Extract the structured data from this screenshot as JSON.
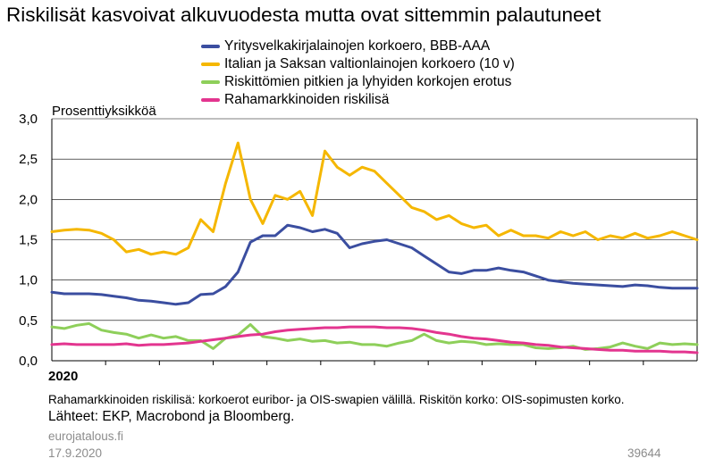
{
  "title": "Riskilisät kasvoivat alkuvuodesta mutta ovat sittemmin palautuneet",
  "chart_data": {
    "type": "line",
    "ylabel": "Prosenttiyksikköä",
    "ylim": [
      0,
      3
    ],
    "yticks": [
      "0,0",
      "0,5",
      "1,0",
      "1,5",
      "2,0",
      "2,5",
      "3,0"
    ],
    "xlim": [
      0,
      52
    ],
    "x_label": "2020",
    "grid": true,
    "legend_position": "top",
    "series": [
      {
        "name": "Yritysvelkakirjalainojen korkoero, BBB-AAA",
        "color": "#3b4ea0",
        "x": [
          0,
          1,
          2,
          3,
          4,
          5,
          6,
          7,
          8,
          9,
          10,
          11,
          12,
          13,
          14,
          15,
          16,
          17,
          18,
          19,
          20,
          21,
          22,
          23,
          24,
          25,
          26,
          27,
          28,
          29,
          30,
          31,
          32,
          33,
          34,
          35,
          36,
          37,
          38,
          39,
          40,
          41,
          42,
          43,
          44,
          45,
          46,
          47,
          48,
          49,
          50,
          51,
          52
        ],
        "values": [
          0.85,
          0.83,
          0.83,
          0.83,
          0.82,
          0.8,
          0.78,
          0.75,
          0.74,
          0.72,
          0.7,
          0.72,
          0.82,
          0.83,
          0.92,
          1.1,
          1.47,
          1.55,
          1.55,
          1.68,
          1.65,
          1.6,
          1.63,
          1.58,
          1.4,
          1.45,
          1.48,
          1.5,
          1.45,
          1.4,
          1.3,
          1.2,
          1.1,
          1.08,
          1.12,
          1.12,
          1.15,
          1.12,
          1.1,
          1.05,
          1.0,
          0.98,
          0.96,
          0.95,
          0.94,
          0.93,
          0.92,
          0.94,
          0.93,
          0.91,
          0.9,
          0.9,
          0.9
        ]
      },
      {
        "name": "Italian ja Saksan valtionlainojen korkoero (10 v)",
        "color": "#f5b700",
        "x": [
          0,
          1,
          2,
          3,
          4,
          5,
          6,
          7,
          8,
          9,
          10,
          11,
          12,
          13,
          14,
          15,
          16,
          17,
          18,
          19,
          20,
          21,
          22,
          23,
          24,
          25,
          26,
          27,
          28,
          29,
          30,
          31,
          32,
          33,
          34,
          35,
          36,
          37,
          38,
          39,
          40,
          41,
          42,
          43,
          44,
          45,
          46,
          47,
          48,
          49,
          50,
          51,
          52
        ],
        "values": [
          1.6,
          1.62,
          1.63,
          1.62,
          1.58,
          1.5,
          1.35,
          1.38,
          1.32,
          1.35,
          1.32,
          1.4,
          1.75,
          1.6,
          2.2,
          2.7,
          2.0,
          1.7,
          2.05,
          2.0,
          2.1,
          1.8,
          2.6,
          2.4,
          2.3,
          2.4,
          2.35,
          2.2,
          2.05,
          1.9,
          1.85,
          1.75,
          1.8,
          1.7,
          1.65,
          1.68,
          1.55,
          1.62,
          1.55,
          1.55,
          1.52,
          1.6,
          1.55,
          1.6,
          1.5,
          1.55,
          1.52,
          1.58,
          1.52,
          1.55,
          1.6,
          1.55,
          1.5
        ]
      },
      {
        "name": "Riskittömien pitkien ja lyhyiden korkojen erotus",
        "color": "#8ecf5a",
        "x": [
          0,
          1,
          2,
          3,
          4,
          5,
          6,
          7,
          8,
          9,
          10,
          11,
          12,
          13,
          14,
          15,
          16,
          17,
          18,
          19,
          20,
          21,
          22,
          23,
          24,
          25,
          26,
          27,
          28,
          29,
          30,
          31,
          32,
          33,
          34,
          35,
          36,
          37,
          38,
          39,
          40,
          41,
          42,
          43,
          44,
          45,
          46,
          47,
          48,
          49,
          50,
          51,
          52
        ],
        "values": [
          0.42,
          0.4,
          0.44,
          0.46,
          0.38,
          0.35,
          0.33,
          0.28,
          0.32,
          0.28,
          0.3,
          0.25,
          0.25,
          0.15,
          0.28,
          0.32,
          0.45,
          0.3,
          0.28,
          0.25,
          0.27,
          0.24,
          0.25,
          0.22,
          0.23,
          0.2,
          0.2,
          0.18,
          0.22,
          0.25,
          0.33,
          0.25,
          0.22,
          0.24,
          0.23,
          0.2,
          0.21,
          0.2,
          0.2,
          0.16,
          0.15,
          0.16,
          0.18,
          0.14,
          0.15,
          0.17,
          0.22,
          0.18,
          0.15,
          0.22,
          0.2,
          0.21,
          0.2
        ]
      },
      {
        "name": "Rahamarkkinoiden riskilisä",
        "color": "#e3358f",
        "x": [
          0,
          1,
          2,
          3,
          4,
          5,
          6,
          7,
          8,
          9,
          10,
          11,
          12,
          13,
          14,
          15,
          16,
          17,
          18,
          19,
          20,
          21,
          22,
          23,
          24,
          25,
          26,
          27,
          28,
          29,
          30,
          31,
          32,
          33,
          34,
          35,
          36,
          37,
          38,
          39,
          40,
          41,
          42,
          43,
          44,
          45,
          46,
          47,
          48,
          49,
          50,
          51,
          52
        ],
        "values": [
          0.2,
          0.21,
          0.2,
          0.2,
          0.2,
          0.2,
          0.21,
          0.19,
          0.2,
          0.2,
          0.21,
          0.22,
          0.24,
          0.26,
          0.28,
          0.3,
          0.32,
          0.33,
          0.36,
          0.38,
          0.39,
          0.4,
          0.41,
          0.41,
          0.42,
          0.42,
          0.42,
          0.41,
          0.41,
          0.4,
          0.38,
          0.35,
          0.33,
          0.3,
          0.28,
          0.27,
          0.25,
          0.23,
          0.22,
          0.2,
          0.19,
          0.17,
          0.16,
          0.15,
          0.14,
          0.13,
          0.13,
          0.12,
          0.12,
          0.12,
          0.11,
          0.11,
          0.1
        ]
      }
    ]
  },
  "footer": {
    "note": "Rahamarkkinoiden riskilisä: korkoerot euribor- ja OIS-swapien välillä. Riskitön korko: OIS-sopimusten korko.",
    "sources": "Lähteet: EKP, Macrobond ja Bloomberg.",
    "site": "eurojatalous.fi",
    "date": "17.9.2020",
    "figure_id": "39644"
  }
}
